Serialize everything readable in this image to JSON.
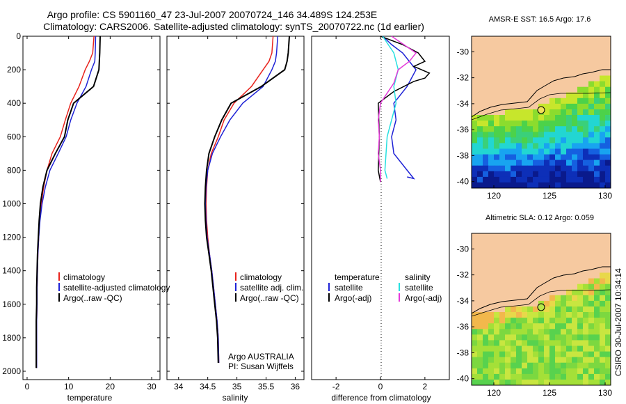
{
  "title_line1": "Argo profile: CS 5901160_47 23-Jul-2007 20070724_146 34.489S 124.253E",
  "title_line2": "Climatology: CARS2006. Satellite-adjusted climatology: synTS_20070722.nc (1d earlier)",
  "side_label": "CSIRO 30-Jul-2007 10:34:14",
  "colors": {
    "climatology": "#e8231c",
    "satellite": "#1e22d6",
    "argo": "#000000",
    "satellite_sal": "#27e0e0",
    "argo_sal": "#e53ad9",
    "land": "#f6c9a0"
  },
  "chart_data": [
    {
      "type": "line",
      "xlabel": "temperature",
      "xlim": [
        -1,
        32
      ],
      "ylim": [
        0,
        2050
      ],
      "xticks": [
        0,
        10,
        20,
        30
      ],
      "yticks": [
        0,
        200,
        400,
        600,
        800,
        1000,
        1200,
        1400,
        1600,
        1800,
        2000
      ],
      "legend": [
        "climatology",
        "satellite-adjusted climatology",
        "Argo(..raw -QC)"
      ],
      "series": [
        {
          "name": "climatology",
          "x": [
            16.1,
            15.8,
            15.0,
            14.0,
            12.5,
            10.5,
            9.2,
            8.0,
            6.0,
            4.8,
            4.0,
            3.4,
            3.0,
            2.8,
            2.6,
            2.5,
            2.4,
            2.4,
            2.3,
            2.3,
            2.3
          ],
          "y": [
            0,
            100,
            150,
            200,
            300,
            400,
            500,
            600,
            700,
            800,
            900,
            1000,
            1100,
            1200,
            1300,
            1400,
            1500,
            1600,
            1700,
            1800,
            1980
          ]
        },
        {
          "name": "satellite",
          "x": [
            16.5,
            16.4,
            16.3,
            15.5,
            14.2,
            12.0,
            10.5,
            9.4,
            7.5,
            5.5,
            4.4,
            3.6,
            3.1,
            2.8,
            2.6,
            2.5,
            2.4,
            2.4,
            2.3,
            2.3,
            2.3
          ],
          "y": [
            0,
            100,
            150,
            200,
            300,
            400,
            500,
            600,
            700,
            800,
            900,
            1000,
            1100,
            1200,
            1300,
            1400,
            1500,
            1600,
            1700,
            1800,
            1980
          ]
        },
        {
          "name": "Argo(..raw -QC)",
          "x": [
            17.6,
            17.5,
            17.4,
            17.3,
            16.0,
            11.2,
            9.8,
            9.0,
            6.8,
            4.8,
            3.8,
            3.2,
            2.9,
            2.7,
            2.5,
            2.4,
            2.3,
            2.3,
            2.2,
            2.2,
            2.2
          ],
          "y": [
            0,
            100,
            150,
            200,
            300,
            400,
            500,
            600,
            700,
            800,
            900,
            1000,
            1100,
            1200,
            1300,
            1400,
            1500,
            1600,
            1700,
            1800,
            1980
          ]
        }
      ]
    },
    {
      "type": "line",
      "xlabel": "salinity",
      "xlim": [
        33.8,
        36.15
      ],
      "ylim": [
        0,
        2050
      ],
      "xticks": [
        34,
        34.5,
        35,
        35.5,
        36
      ],
      "yticks": [
        0,
        200,
        400,
        600,
        800,
        1000,
        1200,
        1400,
        1600,
        1800,
        2000
      ],
      "legend": [
        "climatology",
        "satellite adj. clim.",
        "Argo(..raw -QC)"
      ],
      "annotation": [
        "Argo AUSTRALIA",
        "PI: Susan Wijffels"
      ],
      "series": [
        {
          "name": "climatology",
          "x": [
            35.62,
            35.6,
            35.55,
            35.45,
            35.25,
            34.95,
            34.78,
            34.68,
            34.56,
            34.5,
            34.48,
            34.47,
            34.48,
            34.5,
            34.53,
            34.57,
            34.6,
            34.63,
            34.66,
            34.68,
            34.69
          ],
          "y": [
            0,
            100,
            150,
            200,
            300,
            400,
            500,
            600,
            700,
            800,
            900,
            1000,
            1100,
            1200,
            1300,
            1400,
            1500,
            1600,
            1700,
            1800,
            1950
          ]
        },
        {
          "name": "satellite",
          "x": [
            35.7,
            35.68,
            35.66,
            35.6,
            35.45,
            35.1,
            34.88,
            34.72,
            34.58,
            34.5,
            34.47,
            34.46,
            34.47,
            34.49,
            34.53,
            34.57,
            34.6,
            34.63,
            34.66,
            34.68,
            34.69
          ],
          "y": [
            0,
            100,
            150,
            200,
            300,
            400,
            500,
            600,
            700,
            800,
            900,
            1000,
            1100,
            1200,
            1300,
            1400,
            1500,
            1600,
            1700,
            1800,
            1950
          ]
        },
        {
          "name": "Argo(..raw -QC)",
          "x": [
            35.9,
            35.88,
            35.86,
            35.82,
            35.42,
            34.9,
            34.74,
            34.62,
            34.52,
            34.48,
            34.46,
            34.45,
            34.46,
            34.48,
            34.52,
            34.56,
            34.59,
            34.62,
            34.65,
            34.67,
            34.68
          ],
          "y": [
            0,
            100,
            150,
            200,
            300,
            400,
            500,
            600,
            700,
            800,
            900,
            1000,
            1100,
            1200,
            1300,
            1400,
            1500,
            1600,
            1700,
            1800,
            1950
          ]
        }
      ]
    },
    {
      "type": "line",
      "xlabel": "difference from climatology",
      "xlim": [
        -3.1,
        3.1
      ],
      "ylim": [
        0,
        2050
      ],
      "xticks": [
        -2,
        0,
        2
      ],
      "legend_left_header": "temperature",
      "legend_right_header": "salinity",
      "legend": [
        "satellite",
        "Argo(-adj)",
        "satellite",
        "Argo(-adj)"
      ],
      "series": [
        {
          "name": "temperature satellite",
          "x": [
            0.1,
            0.5,
            1.0,
            1.3,
            1.6,
            1.2,
            0.6,
            0.7,
            0.5,
            0.6,
            1.2,
            1.5,
            1.2
          ],
          "y": [
            0,
            50,
            100,
            150,
            200,
            300,
            400,
            500,
            600,
            700,
            800,
            850,
            840
          ]
        },
        {
          "name": "temperature Argo(-adj)",
          "x": [
            0,
            1.0,
            1.7,
            2.0,
            1.5,
            2.2,
            2.0,
            1.5,
            0.6,
            -0.1,
            -0.05,
            -0.1,
            0.0
          ],
          "y": [
            0,
            50,
            100,
            150,
            180,
            220,
            250,
            270,
            330,
            400,
            600,
            800,
            870
          ]
        },
        {
          "name": "salinity satellite",
          "x": [
            0.1,
            0.6,
            0.8,
            0.6,
            0.7,
            0.5,
            0.3,
            0.25,
            0.2,
            0.3
          ],
          "y": [
            0,
            100,
            200,
            300,
            400,
            500,
            600,
            700,
            800,
            850
          ]
        },
        {
          "name": "salinity Argo(-adj)",
          "x": [
            0.5,
            1.6,
            1.3,
            0.8,
            0.6,
            0.0,
            -0.1,
            -0.05,
            -0.1,
            0.0,
            0.0
          ],
          "y": [
            0,
            100,
            150,
            200,
            280,
            400,
            500,
            600,
            700,
            800,
            870
          ]
        }
      ]
    },
    {
      "type": "heatmap",
      "title": "AMSR-E SST: 16.5 Argo: 17.6",
      "xlim": [
        118,
        130.5
      ],
      "ylim": [
        -40.5,
        -28.8
      ],
      "xticks": [
        120,
        125,
        130
      ],
      "yticks": [
        -30,
        -32,
        -34,
        -36,
        -38,
        -40
      ],
      "marker": {
        "lon": 124.253,
        "lat": -34.489
      }
    },
    {
      "type": "heatmap",
      "title": "Altimetric SLA: 0.12 Argo: 0.059",
      "xlim": [
        118,
        130.5
      ],
      "ylim": [
        -40.5,
        -28.8
      ],
      "xticks": [
        120,
        125,
        130
      ],
      "yticks": [
        -30,
        -32,
        -34,
        -36,
        -38,
        -40
      ],
      "marker": {
        "lon": 124.253,
        "lat": -34.489
      }
    }
  ]
}
